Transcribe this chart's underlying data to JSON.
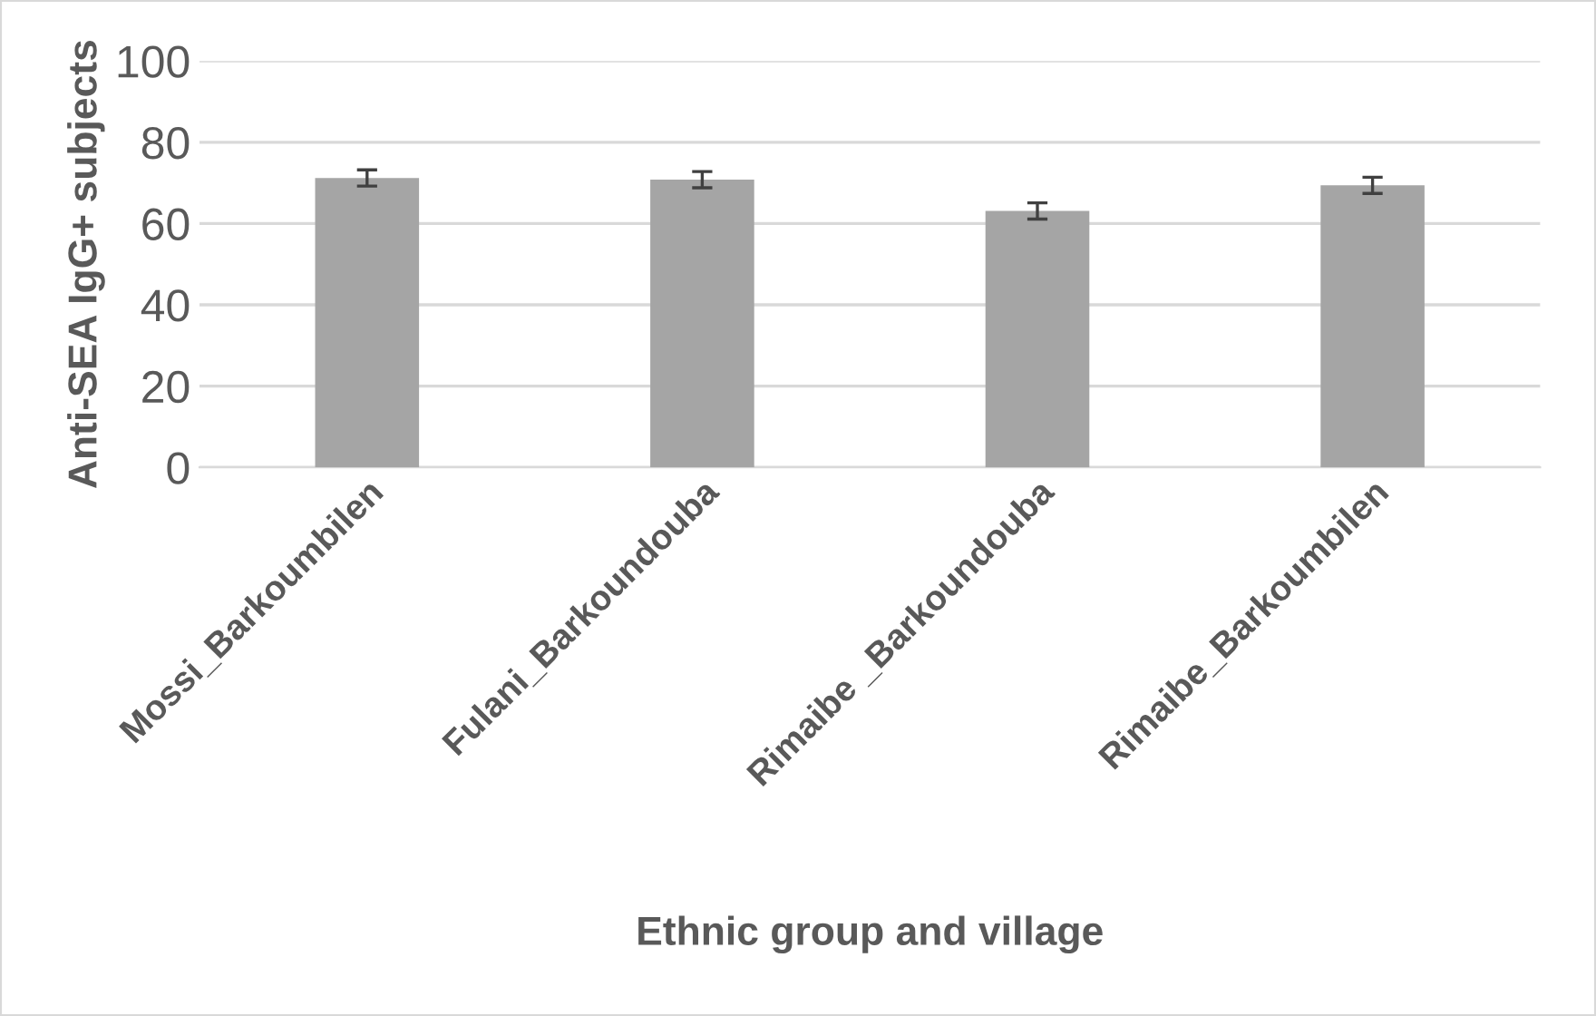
{
  "chart_data": {
    "type": "bar",
    "xlabel": "Ethnic group and village",
    "ylabel": "Anti-SEA IgG+ subjects",
    "categories": [
      "Mossi_Barkoumbilen",
      "Fulani_Barkoundouba",
      "Rimaibe _Barkoundouba",
      "Rimaibe_Barkoumbilen"
    ],
    "values": [
      71.2,
      70.8,
      63.1,
      69.4
    ],
    "errors": [
      2,
      2,
      2,
      2
    ],
    "color": "#a5a5a5",
    "ylim": [
      0,
      100
    ],
    "yticks": [
      0,
      20,
      40,
      60,
      80,
      100
    ],
    "grid": "y",
    "legend": false
  }
}
